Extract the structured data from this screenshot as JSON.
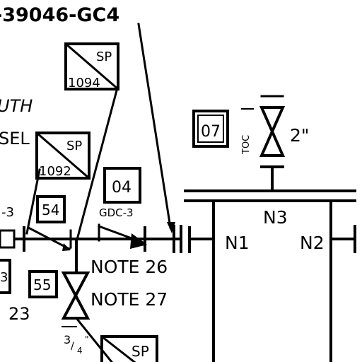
{
  "drawing": {
    "line_designation": "-39046-GC4",
    "fragment_uth": "UTH",
    "fragment_sel": "SEL",
    "fragment_23": "23",
    "fragment_3": "3",
    "fragment_dash3": "-3"
  },
  "tags": {
    "sp_1094": {
      "code": "SP",
      "number": "1094"
    },
    "sp_1092": {
      "code": "SP",
      "number": "1092"
    },
    "sp_bottom": {
      "code": "SP"
    },
    "box_07": "07",
    "box_04": "04",
    "box_54": "54",
    "box_55": "55"
  },
  "labels": {
    "gdc": "GDC-3",
    "note_26": "NOTE 26",
    "note_27": "NOTE 27",
    "vent_size": "2\"",
    "valve_size_num": "3",
    "valve_size_den": "4",
    "vent_annotation": "TOC",
    "header_n1": "N1",
    "header_n2": "N2",
    "header_n3": "N3"
  }
}
